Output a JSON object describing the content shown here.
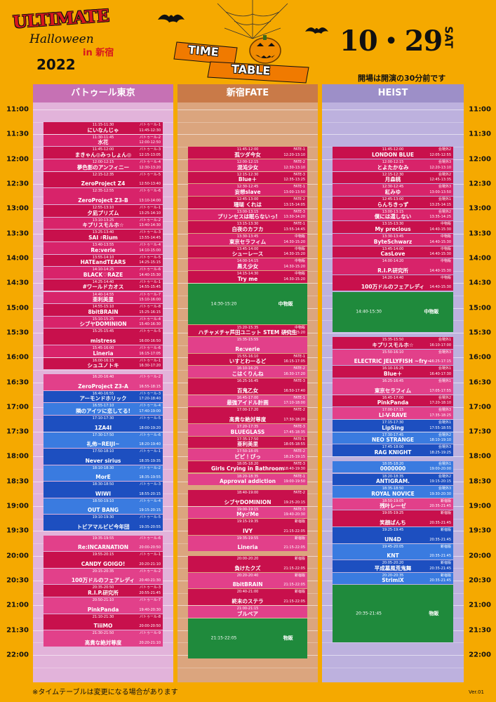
{
  "header": {
    "logo_line1": "ULTIMATE",
    "logo_line2": "Halloween",
    "logo_line3": "in 新宿",
    "logo_year": "2022",
    "banner_line1": "TIME",
    "banner_line2": "TABLE",
    "date": "10・29",
    "weekday": "SAT",
    "notice": "開場は開演の30分前です"
  },
  "times": [
    "11:00",
    "11:30",
    "12:00",
    "12:30",
    "13:00",
    "13:30",
    "14:00",
    "14:30",
    "15:00",
    "15:30",
    "16:00",
    "16:30",
    "17:00",
    "17:30",
    "18:00",
    "18:30",
    "19:00",
    "19:30",
    "20:00",
    "20:30",
    "21:00",
    "21:30",
    "22:00"
  ],
  "columns": [
    {
      "title": "バトゥール東京",
      "color": "#c671b4",
      "body_color": "#e2b3da",
      "events": [
        {
          "time": "11:15-11:30",
          "name": "にいなんじゃ",
          "stage": "バトゥール-1",
          "sub": "11:45-12:30",
          "color": "#c8104c"
        },
        {
          "time": "11:30-11:45",
          "name": "水花",
          "stage": "バトゥール-2",
          "sub": "12:00-12:50",
          "color": "#d8236a"
        },
        {
          "time": "11:45-12:00",
          "name": "まきゃん◎みっしょん◎",
          "stage": "バトゥール-3",
          "sub": "12:15-13:05",
          "color": "#c8104c"
        },
        {
          "time": "12:00-12:15",
          "name": "夢色影のアンフィニー",
          "stage": "バトゥール-4",
          "sub": "12:30-13:20",
          "color": "#d8236a"
        },
        {
          "time": "12:15-12:35",
          "name": "ZeroProject Z4",
          "stage": "バトゥール-5",
          "sub": "12:50-13:40",
          "color": "#c8104c"
        },
        {
          "time": "12:35-12:55",
          "name": "ZeroProject Z3-B",
          "stage": "バトゥール-6",
          "sub": "13:10-14:00",
          "color": "#d8236a"
        },
        {
          "time": "12:55-13:10",
          "name": "夕凪プリズム",
          "stage": "バトゥール-1",
          "sub": "13:25-14:10",
          "color": "#c8104c"
        },
        {
          "time": "13:10-13:25",
          "name": "キプリスモルホ☆",
          "stage": "バトゥール-2",
          "sub": "13:40-14:30",
          "color": "#d8236a"
        },
        {
          "time": "13:25-13:40",
          "name": "SAI ♯Rium",
          "stage": "バトゥール-3",
          "sub": "13:55-14:45",
          "color": "#c8104c"
        },
        {
          "time": "13:40-13:55",
          "name": "Re:verie",
          "stage": "バトゥール-4",
          "sub": "14:10-15:00",
          "color": "#d8236a"
        },
        {
          "time": "13:55-14:10",
          "name": "HATEandTEARS",
          "stage": "バトゥール-5",
          "sub": "14:25-15:15",
          "color": "#c8104c"
        },
        {
          "time": "14:10-14:25",
          "name": "BLACK♡RAZE",
          "stage": "バトゥール-6",
          "sub": "14:40-15:30",
          "color": "#d8236a"
        },
        {
          "time": "14:25-14:40",
          "name": "#ワールドカオス",
          "stage": "バトゥール-1",
          "sub": "14:55-15:45",
          "color": "#c8104c"
        },
        {
          "time": "14:40-14:55",
          "name": "亜利美里",
          "stage": "バトゥール-7",
          "sub": "15:10-16:00",
          "color": "#d8236a"
        },
        {
          "time": "14:55-15:10",
          "name": "8bitBRAIN",
          "stage": "バトゥール-8",
          "sub": "15:25-16:15",
          "color": "#c8104c"
        },
        {
          "time": "15:10-15:25",
          "name": "シブヤDOMINION",
          "stage": "バトゥール-4",
          "sub": "15:40-16:30",
          "color": "#d8236a"
        },
        {
          "time": "15:25-15:45",
          "name": "mistress",
          "stage": "バトゥール-5",
          "sub": "16:00-16:50",
          "color": "#c8104c"
        },
        {
          "time": "15:45-16:00",
          "name": "Lineria",
          "stage": "バトゥール-6",
          "sub": "16:15-17:05",
          "color": "#d8236a"
        },
        {
          "time": "16:00-16:15",
          "name": "シュユノトキ",
          "stage": "バトゥール-1",
          "sub": "16:30-17:20",
          "color": "#c8104c"
        },
        {
          "time": "16:20-16:40",
          "name": "ZeroProject Z3-A",
          "stage": "バトゥール-2",
          "sub": "16:55-18:15",
          "color": "#e2408a"
        },
        {
          "time": "16:40-16:55",
          "name": "アーモンドホリック",
          "stage": "バトゥール-3",
          "sub": "17:20-18:40",
          "color": "#1d4fc0"
        },
        {
          "time": "16:55-17:10",
          "name": "隣のアイツに恋してる!",
          "stage": "バトゥール-4",
          "sub": "17:40-19:00",
          "color": "#3a7be0"
        },
        {
          "time": "17:10-17:30",
          "name": "1ZA4I",
          "stage": "バトゥール-5",
          "sub": "18:00-19:20",
          "color": "#1d4fc0"
        },
        {
          "time": "17:30-17:50",
          "name": "礼佈~REIJI~",
          "stage": "バトゥール-6",
          "sub": "18:20-19:40",
          "color": "#3a7be0"
        },
        {
          "time": "17:50-18:10",
          "name": "Never sirius",
          "stage": "バトゥール-1",
          "sub": "18:35-19:35",
          "color": "#1d4fc0"
        },
        {
          "time": "18:10-18:30",
          "name": "MorE",
          "stage": "バトゥール-2",
          "sub": "18:35-19:55",
          "color": "#3a7be0"
        },
        {
          "time": "18:30-18:50",
          "name": "WIWI",
          "stage": "バトゥール-3",
          "sub": "18:55-20:15",
          "color": "#1d4fc0"
        },
        {
          "time": "18:50-19:10",
          "name": "OUT BANG",
          "stage": "バトゥール-4",
          "sub": "19:15-20:15",
          "color": "#3a7be0"
        },
        {
          "time": "19:10-19:30",
          "name": "トビアマルビビ今年団",
          "stage": "バトゥール-5",
          "sub": "19:35-20:55",
          "color": "#1d4fc0"
        },
        {
          "time": "19:35-19:55",
          "name": "Re:INCARNATION",
          "stage": "バトゥール-6",
          "sub": "20:00-20:50",
          "color": "#e2408a"
        },
        {
          "time": "19:55-20:15",
          "name": "CANDY GOIGO!",
          "stage": "バトゥール-1",
          "sub": "20:20-21:10",
          "color": "#c8104c"
        },
        {
          "time": "20:15-20:35",
          "name": "100万ドルのフェアレディ",
          "stage": "バトゥール-2",
          "sub": "20:40-21:30",
          "color": "#e2408a"
        },
        {
          "time": "20:35-20:50",
          "name": "R.I.P.研究所",
          "stage": "バトゥール-3",
          "sub": "20:55-21:45",
          "color": "#c8104c"
        },
        {
          "time": "20:50-21:10",
          "name": "PinkPanda",
          "stage": "バトゥール-7",
          "sub": "19:40-20:30",
          "color": "#e2408a"
        },
        {
          "time": "21:10-21:30",
          "name": "TiiiMO",
          "stage": "バトゥール-8",
          "sub": "20:00-20:50",
          "color": "#c8104c"
        },
        {
          "time": "21:30-21:50",
          "name": "高貴な絶対尊度",
          "stage": "バトゥール-9",
          "sub": "20:20-21:10",
          "color": "#e2408a"
        }
      ]
    },
    {
      "title": "新宿FATE",
      "color": "#c97a48",
      "body_color": "#dba57e",
      "events": [
        {
          "time": "11:45-12:00",
          "name": "孤ツダ今女",
          "stage": "FATE-1",
          "sub": "12:20-13:10",
          "color": "#c8104c"
        },
        {
          "time": "12:00-12:15",
          "name": "混沌少女",
          "stage": "FATE-2",
          "sub": "12:30-13:10",
          "color": "#d8236a"
        },
        {
          "time": "12:15-12:30",
          "name": "Blue＋",
          "stage": "FATE-3",
          "sub": "12:35-13:25",
          "color": "#c8104c"
        },
        {
          "time": "12:30-12:45",
          "name": "妄想slave",
          "stage": "FATE-1",
          "sub": "13:00-13:50",
          "color": "#d8236a"
        },
        {
          "time": "12:45-13:00",
          "name": "珊瑚 くれは",
          "stage": "FATE-2",
          "sub": "13:15-14:05",
          "color": "#c8104c"
        },
        {
          "time": "13:00-13:15",
          "name": "プリンセスは眠らないっ!",
          "stage": "FATE-3",
          "sub": "13:30-14:20",
          "color": "#d8236a"
        },
        {
          "time": "13:15-13:30",
          "name": "白夜のカフカ",
          "stage": "FATE-1",
          "sub": "13:55-14:45",
          "color": "#c8104c"
        },
        {
          "time": "13:30-13:45",
          "name": "東京セラフィム",
          "stage": "中物販",
          "sub": "14:30-15:20",
          "color": "#d8236a"
        },
        {
          "time": "13:45-14:00",
          "name": "シューレース",
          "stage": "中物販",
          "sub": "14:30-15:20",
          "color": "#c8104c"
        },
        {
          "time": "14:00-14:15",
          "name": "黒え少女",
          "stage": "中物販",
          "sub": "14:30-15:20",
          "color": "#d8236a"
        },
        {
          "time": "14:15-14:30",
          "name": "Try me",
          "stage": "中物販",
          "sub": "14:30-15:20",
          "color": "#c8104c"
        },
        {
          "time": "14:30-15:20",
          "label": "中物販",
          "color": "#1f8a3c"
        },
        {
          "time": "15:20-15:35",
          "name": "ハチャメチャ芦田ユニット STEM 研究生",
          "stage": "中物販",
          "sub": "14:30-15:20",
          "color": "#c8104c"
        },
        {
          "time": "15:35-15:55",
          "name": "Re:verie",
          "color": "#e2408a"
        },
        {
          "time": "15:55-16:10",
          "name": "いすとわーるど",
          "stage": "FATE-1",
          "sub": "16:15-17:05",
          "color": "#c8104c"
        },
        {
          "time": "16:10-16:25",
          "name": "こはくりんね",
          "stage": "FATE-2",
          "sub": "16:30-17:20",
          "color": "#e2408a"
        },
        {
          "time": "16:25-16:45",
          "name": "百鬼乙女",
          "stage": "FATE-3",
          "sub": "16:50-17:40",
          "color": "#c8104c"
        },
        {
          "time": "16:45-17:00",
          "name": "最強アイドル計画",
          "stage": "FATE-1",
          "sub": "17:10-18:00",
          "color": "#e2408a"
        },
        {
          "time": "17:00-17:20",
          "name": "高貴な絶対尊度",
          "stage": "FATE-2",
          "sub": "17:30-18:20",
          "color": "#c8104c"
        },
        {
          "time": "17:20-17:35",
          "name": "BLUEGLASS",
          "stage": "FATE-3",
          "sub": "17:45-18:35",
          "color": "#e2408a"
        },
        {
          "time": "17:35-17:50",
          "name": "亜利美里",
          "stage": "FATE-1",
          "sub": "18:05-18:55",
          "color": "#c8104c"
        },
        {
          "time": "17:50-18:05",
          "name": "ピピ！ぴっ",
          "stage": "FATE-2",
          "sub": "18:25-19:15",
          "color": "#e2408a"
        },
        {
          "time": "18:05-18:20",
          "name": "Girls Crying in Bathroom",
          "stage": "FATE-3",
          "sub": "18:40-19:30",
          "color": "#c8104c"
        },
        {
          "time": "18:20-18:35",
          "name": "Approval addiction",
          "stage": "FATE-1",
          "sub": "19:00-19:50",
          "color": "#e2408a"
        },
        {
          "time": "18:40-19:00",
          "name": "シブヤDOMINION",
          "stage": "FATE-2",
          "sub": "19:25-20:15",
          "color": "#c8104c"
        },
        {
          "time": "19:00-19:15",
          "name": "My♂Me",
          "stage": "FATE-3",
          "sub": "19:40-20:30",
          "color": "#e2408a"
        },
        {
          "time": "19:15-19:35",
          "name": "IVY",
          "stage": "新宿版",
          "sub": "21:15-22:05",
          "color": "#c8104c"
        },
        {
          "time": "19:35-19:55",
          "name": "Lineria",
          "stage": "新宿版",
          "sub": "21:15-22:05",
          "color": "#e2408a"
        },
        {
          "time": "20:00-20:20",
          "name": "負けたクズ",
          "stage": "新宿版",
          "sub": "21:15-22:05",
          "color": "#c8104c"
        },
        {
          "time": "20:20-20:40",
          "name": "8bitBRAIN",
          "stage": "新宿版",
          "sub": "21:15-22:05",
          "color": "#e2408a"
        },
        {
          "time": "20:40-21:00",
          "name": "終末のステラ",
          "stage": "新宿版",
          "sub": "21:15-22:05",
          "color": "#c8104c"
        },
        {
          "time": "21:00-21:15",
          "name": "ブルベア",
          "color": "#e2408a"
        },
        {
          "time": "21:15-22:05",
          "label": "物販",
          "color": "#1f8a3c"
        }
      ]
    },
    {
      "title": "HEIST",
      "color": "#9d8fc8",
      "body_color": "#bdb1de",
      "events": [
        {
          "time": "11:45-12:00",
          "name": "LONDON BLUE",
          "stage": "会場外2",
          "sub": "12:05-12:55",
          "color": "#c8104c"
        },
        {
          "time": "12:00-12:15",
          "name": "とよたかなみ",
          "stage": "会場外3",
          "sub": "12:20-13:10",
          "color": "#d8236a"
        },
        {
          "time": "12:15-12:30",
          "name": "月森桃",
          "stage": "会場外2",
          "sub": "12:45-13:35",
          "color": "#c8104c"
        },
        {
          "time": "12:30-12:45",
          "name": "紅みゆ",
          "stage": "会場外3",
          "sub": "13:00-13:50",
          "color": "#d8236a"
        },
        {
          "time": "12:45-13:00",
          "name": "らんちきっず",
          "stage": "会場外1",
          "sub": "13:25-14:15",
          "color": "#c8104c"
        },
        {
          "time": "13:00-13:15",
          "name": "僕には還しない",
          "stage": "会場外2",
          "sub": "13:35-14:25",
          "color": "#d8236a"
        },
        {
          "time": "13:15-13:30",
          "name": "My precious",
          "stage": "中物販",
          "sub": "14:40-15:30",
          "color": "#c8104c"
        },
        {
          "time": "13:30-13:45",
          "name": "ByteSchwarz",
          "stage": "中物販",
          "sub": "14:40-15:30",
          "color": "#d8236a"
        },
        {
          "time": "13:45-14:00",
          "name": "CasLove",
          "stage": "中物販",
          "sub": "14:40-15:30",
          "color": "#c8104c"
        },
        {
          "time": "14:00-14:20",
          "name": "R.I.P.研究所",
          "stage": "中物販",
          "sub": "14:40-15:30",
          "color": "#d8236a"
        },
        {
          "time": "14:20-14:40",
          "name": "100万ドルのフェアレディ",
          "stage": "中物販",
          "sub": "14:40-15:30",
          "color": "#c8104c"
        },
        {
          "time": "14:40-15:30",
          "label": "中物販",
          "color": "#1f8a3c"
        },
        {
          "time": "15:35-15:50",
          "name": "キプリスモルホ☆",
          "stage": "会場外1",
          "sub": "16:10-17:00",
          "color": "#c8104c"
        },
        {
          "time": "15:50-16:10",
          "name": "ELECTRIC JELLYFISH ~fry~",
          "stage": "会場外3",
          "sub": "16:25-17:15",
          "color": "#e2408a"
        },
        {
          "time": "16:10-16:25",
          "name": "Blue＋",
          "stage": "会場外1",
          "sub": "16:40-17:30",
          "color": "#c8104c"
        },
        {
          "time": "16:25-16:45",
          "name": "東京セラフィム",
          "stage": "会場外1",
          "sub": "17:05-17:55",
          "color": "#e2408a"
        },
        {
          "time": "16:45-17:00",
          "name": "PinkPanda",
          "stage": "会場外2",
          "sub": "17:20-18:10",
          "color": "#c8104c"
        },
        {
          "time": "17:00-17:15",
          "name": "Li-V-RAVE",
          "stage": "会場外3",
          "sub": "17:35-18:25",
          "color": "#e2408a"
        },
        {
          "time": "17:15-17:30",
          "name": "LipSing",
          "stage": "会場外1",
          "sub": "17:55-18:55",
          "color": "#1d4fc0"
        },
        {
          "time": "17:30-17:45",
          "name": "NEO STRANGE",
          "stage": "会場外2",
          "sub": "18:10-19:10",
          "color": "#3a7be0"
        },
        {
          "time": "17:45-18:00",
          "name": "RAG KNIGHT",
          "stage": "会場外3",
          "sub": "18:25-19:25",
          "color": "#1d4fc0"
        },
        {
          "time": "18:05-18:20",
          "name": "0000000",
          "stage": "会場外1",
          "sub": "19:00-20:00",
          "color": "#3a7be0"
        },
        {
          "time": "18:20-18:35",
          "name": "ANTIGRAM.",
          "stage": "会場外2",
          "sub": "19:15-20:15",
          "color": "#1d4fc0"
        },
        {
          "time": "18:35-18:50",
          "name": "ROYAL NOVICE",
          "stage": "会場外3",
          "sub": "19:30-20:30",
          "color": "#3a7be0"
        },
        {
          "time": "18:50-19:05",
          "name": "残叶レーゼ",
          "stage": "新宿版",
          "sub": "20:35-21:45",
          "color": "#e2408a"
        },
        {
          "time": "19:05-19:25",
          "name": "笑顔ぱんち",
          "stage": "新宿版",
          "sub": "20:35-21:45",
          "color": "#c8104c"
        },
        {
          "time": "19:25-19:45",
          "name": "UN4D",
          "stage": "新宿版",
          "sub": "20:35-21:45",
          "color": "#1d4fc0"
        },
        {
          "time": "19:45-20:05",
          "name": "KNT",
          "stage": "新宿版",
          "sub": "20:35-21:45",
          "color": "#3a7be0"
        },
        {
          "time": "20:05-20:20",
          "name": "平成墓風荒鬼舞",
          "stage": "新宿版",
          "sub": "20:35-21:45",
          "color": "#1d4fc0"
        },
        {
          "time": "20:20-20:35",
          "name": "StrimiX",
          "stage": "新宿版",
          "sub": "20:35-21:45",
          "color": "#3a7be0"
        },
        {
          "time": "20:35-21:45",
          "label": "物販",
          "color": "#1f8a3c"
        }
      ]
    }
  ],
  "footer": {
    "note": "※タイムテーブルは変更になる場合があります",
    "version": "Ver.01"
  }
}
